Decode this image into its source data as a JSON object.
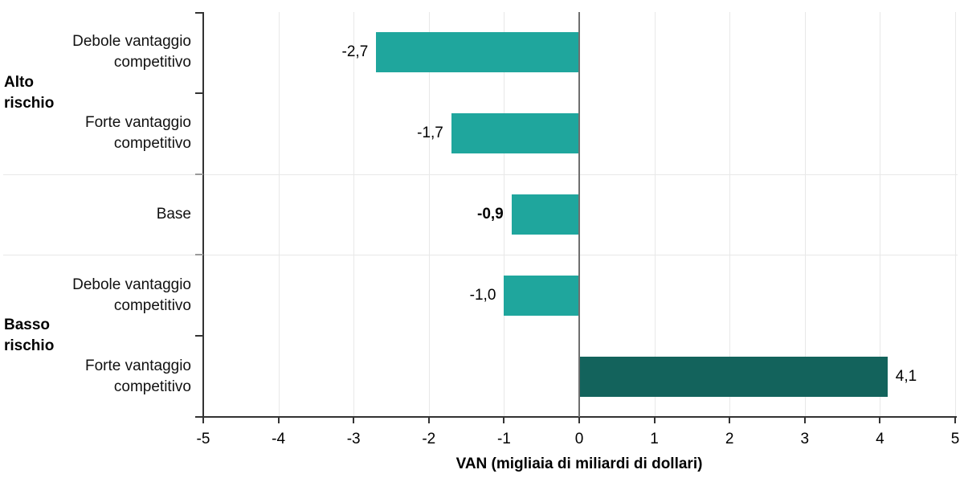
{
  "chart_data": {
    "type": "bar",
    "orientation": "horizontal",
    "title": "",
    "xlabel": "VAN (migliaia di miliardi di dollari)",
    "ylabel": "",
    "xlim": [
      -5,
      5
    ],
    "grid": true,
    "legend_position": "none",
    "x_ticks": [
      {
        "value": -5,
        "label": "-5"
      },
      {
        "value": -4,
        "label": "-4"
      },
      {
        "value": -3,
        "label": "-3"
      },
      {
        "value": -2,
        "label": "-2"
      },
      {
        "value": -1,
        "label": "-1"
      },
      {
        "value": 0,
        "label": "0"
      },
      {
        "value": 1,
        "label": "1"
      },
      {
        "value": 2,
        "label": "2"
      },
      {
        "value": 3,
        "label": "3"
      },
      {
        "value": 4,
        "label": "4"
      },
      {
        "value": 5,
        "label": "5"
      }
    ],
    "groups": [
      {
        "name": "Alto rischio",
        "label_lines": [
          "Alto",
          "rischio"
        ],
        "row_span": [
          0,
          1
        ]
      },
      {
        "name": "Basso rischio",
        "label_lines": [
          "Basso",
          "rischio"
        ],
        "row_span": [
          3,
          4
        ]
      }
    ],
    "rows": [
      {
        "group": "Alto rischio",
        "category_lines": [
          "Debole vantaggio",
          "competitivo"
        ],
        "value": -2.7,
        "value_label": "-2,7",
        "emphasis": false
      },
      {
        "group": "Alto rischio",
        "category_lines": [
          "Forte vantaggio",
          "competitivo"
        ],
        "value": -1.7,
        "value_label": "-1,7",
        "emphasis": false
      },
      {
        "group": "",
        "category_lines": [
          "Base"
        ],
        "value": -0.9,
        "value_label": "-0,9",
        "emphasis": true
      },
      {
        "group": "Basso rischio",
        "category_lines": [
          "Debole vantaggio",
          "competitivo"
        ],
        "value": -1.0,
        "value_label": "-1,0",
        "emphasis": false
      },
      {
        "group": "Basso rischio",
        "category_lines": [
          "Forte vantaggio",
          "competitivo"
        ],
        "value": 4.1,
        "value_label": "4,1",
        "emphasis": false
      }
    ],
    "colors": {
      "bar_negative": "#1FA69D",
      "bar_positive": "#13635C",
      "gridline": "#E8E8E8",
      "zero_line": "#6F6F6F",
      "axis": "#333333",
      "text": "#000000"
    }
  }
}
